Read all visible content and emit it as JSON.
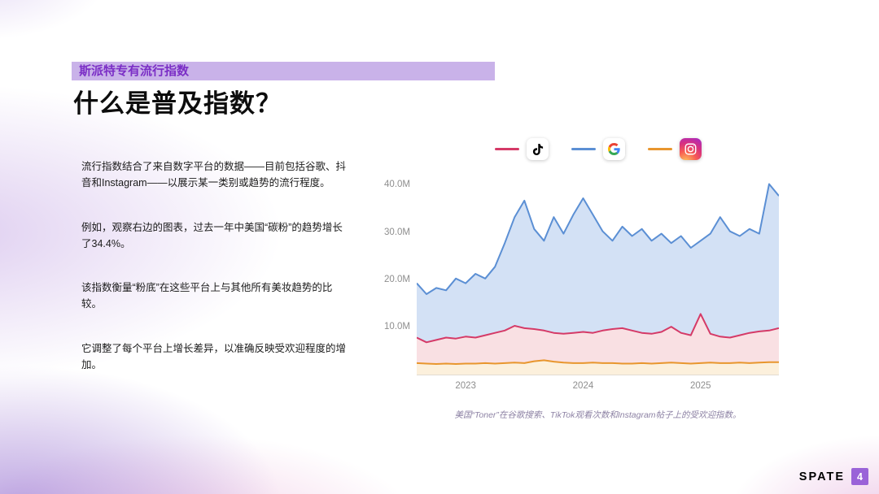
{
  "header": {
    "badge": "斯派特专有流行指数"
  },
  "title": "什么是普及指数？",
  "paragraphs": [
    "流行指数结合了来自数字平台的数据——目前包括谷歌、抖音和Instagram——以展示某一类别或趋势的流行程度。",
    "例如，观察右边的图表，过去一年中美国“碳粉”的趋势增长了34.4%。",
    "该指数衡量“粉底”在这些平台上与其他所有美妆趋势的比较。",
    "它调整了每个平台上增长差异，以准确反映受欢迎程度的增加。"
  ],
  "chart_caption": "美国“Toner”在谷歌搜索、TikTok观看次数和Instagram帖子上的受欢迎指数。",
  "footer": {
    "brand": "SPATE",
    "page": "4"
  },
  "colors": {
    "badge_bg": "#c9b2e9",
    "badge_text": "#7b2ec6",
    "page_badge_bg": "#9a63d8",
    "google_line": "#5b8fd4",
    "tiktok_line": "#d53a67",
    "instagram_line": "#e8962e"
  },
  "chart_data": {
    "type": "area",
    "title": "",
    "x_tick_labels": [
      "2023",
      "2024",
      "2025"
    ],
    "x_tick_indices": [
      5,
      17,
      29
    ],
    "y_tick_labels": [
      "40.0M",
      "30.0M",
      "20.0M",
      "10.0M"
    ],
    "y_tick_values": [
      40,
      30,
      20,
      10
    ],
    "ylim": [
      0,
      43
    ],
    "legend": [
      {
        "platform": "TikTok",
        "color": "#d53a67",
        "icon": "tiktok-icon"
      },
      {
        "platform": "Google",
        "color": "#5b8fd4",
        "icon": "google-icon"
      },
      {
        "platform": "Instagram",
        "color": "#e8962e",
        "icon": "instagram-icon"
      }
    ],
    "series": [
      {
        "name": "Google",
        "color": "#5b8fd4",
        "fill": "#d3e1f5",
        "values": [
          19.5,
          17.2,
          18.5,
          18,
          20.5,
          19.5,
          21.5,
          20.5,
          23,
          28,
          33.5,
          37,
          31,
          28.5,
          33.5,
          30,
          34,
          37.5,
          34,
          30.5,
          28.5,
          31.5,
          29.5,
          31,
          28.5,
          30,
          28,
          29.5,
          27,
          28.5,
          30,
          33.5,
          30.5,
          29.5,
          31,
          30,
          40.5,
          38
        ]
      },
      {
        "name": "TikTok",
        "color": "#d53a67",
        "fill": "#f9e0e3",
        "values": [
          8,
          7,
          7.5,
          8,
          7.8,
          8.2,
          8,
          8.5,
          9,
          9.5,
          10.5,
          10,
          9.8,
          9.5,
          9,
          8.8,
          9,
          9.2,
          9,
          9.5,
          9.8,
          10,
          9.5,
          9,
          8.8,
          9.2,
          10.3,
          9,
          8.5,
          13,
          8.8,
          8.2,
          8,
          8.5,
          9,
          9.3,
          9.5,
          10
        ]
      },
      {
        "name": "Instagram",
        "color": "#e8962e",
        "fill": "#fcf0dc",
        "values": [
          2.6,
          2.5,
          2.4,
          2.5,
          2.4,
          2.5,
          2.5,
          2.6,
          2.5,
          2.6,
          2.7,
          2.6,
          3,
          3.2,
          2.9,
          2.7,
          2.6,
          2.6,
          2.7,
          2.6,
          2.6,
          2.5,
          2.5,
          2.6,
          2.5,
          2.6,
          2.7,
          2.6,
          2.5,
          2.6,
          2.7,
          2.6,
          2.6,
          2.7,
          2.6,
          2.7,
          2.8,
          2.8
        ]
      }
    ]
  }
}
